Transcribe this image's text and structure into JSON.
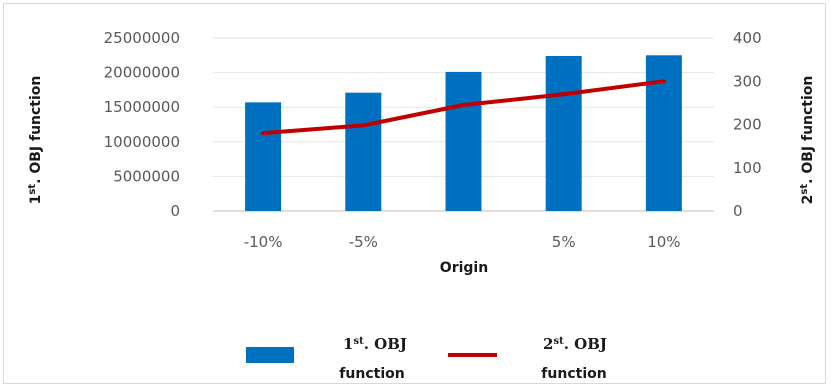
{
  "chart_data": {
    "type": "bar+line",
    "categories": [
      "-10%",
      "-5%",
      "",
      "5%",
      "10%"
    ],
    "xlabel": "Origin",
    "y_left": {
      "label_main": "1",
      "label_sup": "st",
      "label_rest": ". OBJ function",
      "ylim": [
        0,
        25000000
      ],
      "ticks": [
        "0",
        "5000000",
        "10000000",
        "15000000",
        "20000000",
        "25000000"
      ]
    },
    "y_right": {
      "label_main": "2",
      "label_sup": "st",
      "label_rest": ". OBJ function",
      "ylim": [
        0,
        400
      ],
      "ticks": [
        "0",
        "100",
        "200",
        "300",
        "400"
      ]
    },
    "series": [
      {
        "kind": "bar",
        "axis": "left",
        "legend_line1_main": "1",
        "legend_line1_sup": "st",
        "legend_line1_rest": ". OBJ",
        "legend_line2": "function",
        "color": "#0070C0",
        "values": [
          15700000,
          17100000,
          20100000,
          22400000,
          22500000
        ]
      },
      {
        "kind": "line",
        "axis": "right",
        "legend_line1_main": "2",
        "legend_line1_sup": "st",
        "legend_line1_rest": ". OBJ",
        "legend_line2": "function",
        "color": "#C00000",
        "values": [
          180,
          198,
          245,
          270,
          300
        ]
      }
    ],
    "grid": true,
    "legend_position": "bottom"
  }
}
